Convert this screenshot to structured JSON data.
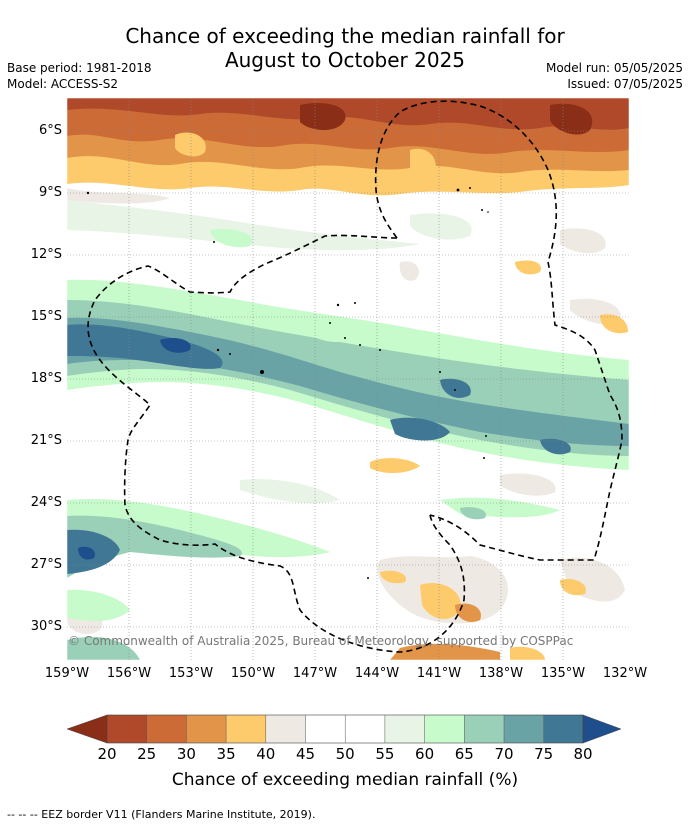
{
  "title_line1": "Chance of exceeding the median rainfall for",
  "title_line2": "August to October 2025",
  "base_period": "Base period: 1981-2018",
  "model": "Model: ACCESS-S2",
  "model_run": "Model run: 05/05/2025",
  "issued": "Issued: 07/05/2025",
  "lat_labels": [
    "6°S",
    "9°S",
    "12°S",
    "15°S",
    "18°S",
    "21°S",
    "24°S",
    "27°S",
    "30°S"
  ],
  "lon_labels": [
    "159°W",
    "156°W",
    "153°W",
    "150°W",
    "147°W",
    "144°W",
    "141°W",
    "138°W",
    "135°W",
    "132°W"
  ],
  "copyright": "© Commonwealth of Australia 2025, Bureau of Meteorology, supported by COSPPac",
  "colorbar": {
    "title": "Chance of exceeding median rainfall (%)",
    "ticks": [
      "20",
      "25",
      "30",
      "35",
      "40",
      "45",
      "50",
      "55",
      "60",
      "65",
      "70",
      "75",
      "80"
    ],
    "colors": {
      "below20": "#8b2e17",
      "20-25": "#b0492a",
      "25-30": "#cc6b35",
      "30-35": "#e29548",
      "35-40": "#fdcb6b",
      "40-45": "#efe9e4",
      "45-50": "#ffffff",
      "50-55": "#ffffff",
      "55-60": "#e8f5e6",
      "60-65": "#c7fbcb",
      "65-70": "#9ad0b8",
      "70-75": "#6aa3a6",
      "75-80": "#3f7795",
      "above80": "#1f4e8c"
    }
  },
  "footnote": "--  --  -- EEZ border V11 (Flanders Marine Institute, 2019)."
}
